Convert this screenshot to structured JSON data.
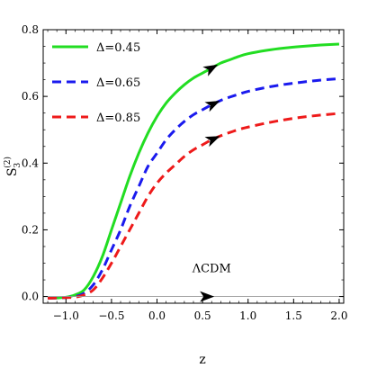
{
  "chart_data": {
    "type": "line",
    "xlabel": "z",
    "ylabel": "S",
    "ylabel_sub": "3",
    "ylabel_sup": "(2)",
    "xlim": [
      -1.25,
      2.05
    ],
    "ylim": [
      -0.02,
      0.8
    ],
    "x_ticks": [
      -1.0,
      -0.5,
      0.0,
      0.5,
      1.0,
      1.5,
      2.0
    ],
    "x_tick_labels": [
      "−1.0",
      "−0.5",
      "0.0",
      "0.5",
      "1.0",
      "1.5",
      "2.0"
    ],
    "y_ticks": [
      0.0,
      0.2,
      0.4,
      0.6,
      0.8
    ],
    "y_tick_labels": [
      "0.0",
      "0.2",
      "0.4",
      "0.6",
      "0.8"
    ],
    "legend_placement": "top-left",
    "annotation": {
      "text": "ΛCDM",
      "x": 0.5,
      "y": 0.0
    },
    "series": [
      {
        "name": "Δ=0.45",
        "color": "#22dd22",
        "style": "solid",
        "x": [
          -1.2,
          -1.1,
          -1.0,
          -0.9,
          -0.8,
          -0.7,
          -0.6,
          -0.5,
          -0.4,
          -0.3,
          -0.2,
          -0.1,
          0.0,
          0.1,
          0.2,
          0.3,
          0.4,
          0.5,
          0.6,
          0.7,
          0.8,
          0.9,
          1.0,
          1.2,
          1.4,
          1.6,
          1.8,
          2.0
        ],
        "y": [
          -0.005,
          -0.004,
          -0.002,
          0.005,
          0.02,
          0.06,
          0.12,
          0.2,
          0.28,
          0.36,
          0.43,
          0.49,
          0.54,
          0.58,
          0.61,
          0.635,
          0.655,
          0.67,
          0.685,
          0.7,
          0.71,
          0.72,
          0.728,
          0.738,
          0.745,
          0.75,
          0.754,
          0.757
        ]
      },
      {
        "name": "Δ=0.65",
        "color": "#1a1aee",
        "style": "dashed",
        "x": [
          -1.2,
          -1.1,
          -1.0,
          -0.9,
          -0.8,
          -0.7,
          -0.6,
          -0.5,
          -0.4,
          -0.3,
          -0.2,
          -0.1,
          0.0,
          0.1,
          0.2,
          0.3,
          0.4,
          0.5,
          0.6,
          0.7,
          0.8,
          0.9,
          1.0,
          1.2,
          1.4,
          1.6,
          1.8,
          2.0
        ],
        "y": [
          -0.005,
          -0.004,
          -0.003,
          0.0,
          0.01,
          0.035,
          0.08,
          0.14,
          0.2,
          0.27,
          0.33,
          0.39,
          0.43,
          0.47,
          0.5,
          0.525,
          0.545,
          0.56,
          0.575,
          0.588,
          0.598,
          0.607,
          0.615,
          0.627,
          0.636,
          0.643,
          0.649,
          0.653
        ]
      },
      {
        "name": "Δ=0.85",
        "color": "#ee1a1a",
        "style": "dashed",
        "x": [
          -1.2,
          -1.1,
          -1.0,
          -0.9,
          -0.8,
          -0.7,
          -0.6,
          -0.5,
          -0.4,
          -0.3,
          -0.2,
          -0.1,
          0.0,
          0.1,
          0.2,
          0.3,
          0.4,
          0.5,
          0.6,
          0.7,
          0.8,
          0.9,
          1.0,
          1.2,
          1.4,
          1.6,
          1.8,
          2.0
        ],
        "y": [
          -0.005,
          -0.004,
          -0.003,
          -0.002,
          0.005,
          0.02,
          0.055,
          0.1,
          0.15,
          0.2,
          0.25,
          0.3,
          0.34,
          0.37,
          0.395,
          0.42,
          0.44,
          0.455,
          0.47,
          0.482,
          0.492,
          0.501,
          0.508,
          0.52,
          0.53,
          0.538,
          0.544,
          0.549
        ]
      },
      {
        "name": "ΛCDM",
        "color": "#999999",
        "style": "thin",
        "x": [
          -1.25,
          2.05
        ],
        "y": [
          0.0,
          0.0
        ]
      }
    ]
  }
}
